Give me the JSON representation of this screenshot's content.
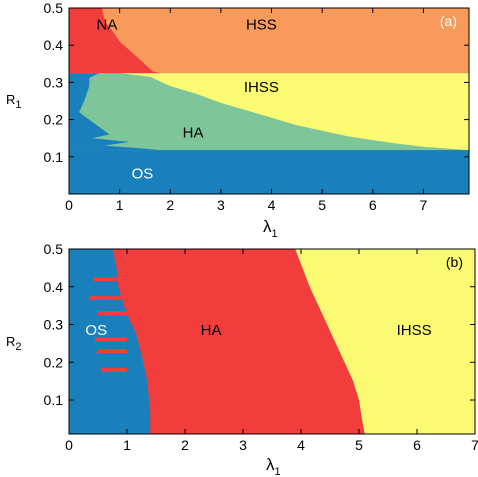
{
  "chart_data": [
    {
      "type": "heatmap",
      "panel_tag": "(a)",
      "xlabel": {
        "symbol": "λ",
        "sub": "1"
      },
      "ylabel": {
        "symbol": "R",
        "sub": "1"
      },
      "xlim": [
        0,
        7.9
      ],
      "ylim": [
        0,
        0.5
      ],
      "xticks": [
        "0",
        "1",
        "2",
        "3",
        "4",
        "5",
        "6",
        "7"
      ],
      "yticks": [
        "0.1",
        "0.2",
        "0.3",
        "0.4",
        "0.5"
      ],
      "colors": {
        "OS": "#1a80bb",
        "HA": "#7fc59a",
        "IHSS": "#fafa73",
        "HSS": "#f79a5a",
        "NA": "#f23d3d"
      },
      "regions": [
        {
          "label": "OS",
          "at": [
            1.45,
            0.055
          ],
          "color": "#ffffff"
        },
        {
          "label": "HA",
          "at": [
            2.45,
            0.165
          ],
          "color": "#000000"
        },
        {
          "label": "IHSS",
          "at": [
            3.8,
            0.287
          ],
          "color": "#000000"
        },
        {
          "label": "HSS",
          "at": [
            3.8,
            0.455
          ],
          "color": "#000000"
        },
        {
          "label": "NA",
          "at": [
            0.75,
            0.455
          ],
          "color": "#000000"
        }
      ],
      "boundaries": {
        "os_band_top": 0.118,
        "upper_band_bottom": 0.325,
        "ha_ihss_frontier": [
          [
            1.0,
            0.325
          ],
          [
            1.6,
            0.315
          ],
          [
            2.0,
            0.29
          ],
          [
            2.5,
            0.27
          ],
          [
            3.0,
            0.245
          ],
          [
            3.5,
            0.225
          ],
          [
            4.0,
            0.205
          ],
          [
            4.5,
            0.185
          ],
          [
            5.0,
            0.17
          ],
          [
            5.5,
            0.155
          ],
          [
            6.0,
            0.145
          ],
          [
            6.5,
            0.135
          ],
          [
            7.0,
            0.127
          ],
          [
            7.9,
            0.118
          ]
        ],
        "na_hss_frontier": [
          [
            0.65,
            0.5
          ],
          [
            0.72,
            0.46
          ],
          [
            0.85,
            0.44
          ],
          [
            1.0,
            0.41
          ],
          [
            1.25,
            0.38
          ],
          [
            1.45,
            0.355
          ],
          [
            1.65,
            0.33
          ],
          [
            1.8,
            0.325
          ]
        ],
        "os_ha_frontier": [
          [
            0.0,
            0.325
          ],
          [
            0.6,
            0.325
          ],
          [
            0.4,
            0.312
          ],
          [
            0.4,
            0.29
          ],
          [
            0.3,
            0.25
          ],
          [
            0.2,
            0.22
          ],
          [
            0.55,
            0.185
          ],
          [
            0.8,
            0.16
          ],
          [
            0.45,
            0.15
          ],
          [
            1.2,
            0.14
          ],
          [
            0.7,
            0.13
          ],
          [
            1.5,
            0.122
          ],
          [
            1.8,
            0.118
          ]
        ]
      }
    },
    {
      "type": "heatmap",
      "panel_tag": "(b)",
      "xlabel": {
        "symbol": "λ",
        "sub": "1"
      },
      "ylabel": {
        "symbol": "R",
        "sub": "2"
      },
      "xlim": [
        0,
        7
      ],
      "ylim": [
        0.01,
        0.5
      ],
      "xticks": [
        "0",
        "1",
        "2",
        "3",
        "4",
        "5",
        "6",
        "7"
      ],
      "yticks": [
        "0.1",
        "0.2",
        "0.3",
        "0.4",
        "0.5"
      ],
      "colors": {
        "OS": "#1a80bb",
        "HA": "#f23d3d",
        "IHSS": "#fafa73"
      },
      "regions": [
        {
          "label": "OS",
          "at": [
            0.47,
            0.285
          ],
          "color": "#ffffff"
        },
        {
          "label": "HA",
          "at": [
            2.45,
            0.285
          ],
          "color": "#000000"
        },
        {
          "label": "IHSS",
          "at": [
            5.95,
            0.285
          ],
          "color": "#000000"
        }
      ],
      "boundaries": {
        "ha_ihss_frontier": [
          [
            3.9,
            0.5
          ],
          [
            4.0,
            0.46
          ],
          [
            4.15,
            0.4
          ],
          [
            4.3,
            0.35
          ],
          [
            4.45,
            0.3
          ],
          [
            4.6,
            0.25
          ],
          [
            4.75,
            0.2
          ],
          [
            4.9,
            0.15
          ],
          [
            5.0,
            0.1
          ],
          [
            5.05,
            0.05
          ],
          [
            5.1,
            0.01
          ]
        ],
        "os_ha_frontier": [
          [
            0.75,
            0.5
          ],
          [
            0.82,
            0.45
          ],
          [
            0.85,
            0.4
          ],
          [
            0.95,
            0.35
          ],
          [
            1.05,
            0.31
          ],
          [
            1.15,
            0.28
          ],
          [
            1.25,
            0.22
          ],
          [
            1.35,
            0.15
          ],
          [
            1.4,
            0.07
          ],
          [
            1.4,
            0.01
          ]
        ]
      }
    }
  ]
}
